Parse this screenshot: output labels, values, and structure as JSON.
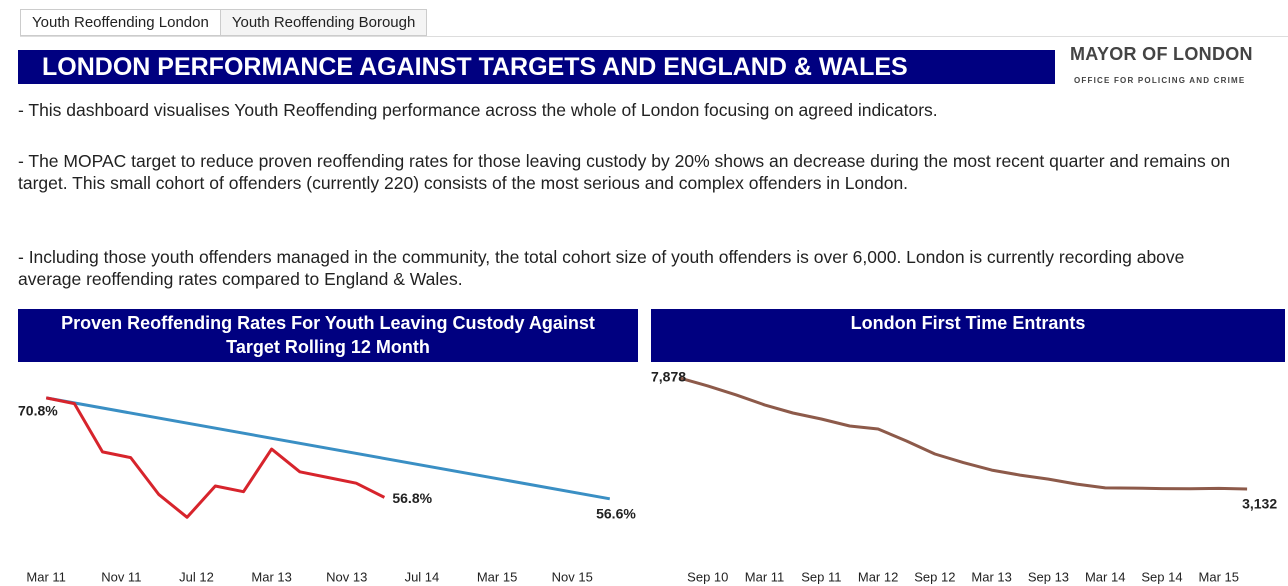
{
  "tabs": [
    "Youth Reoffending London",
    "Youth Reoffending Borough"
  ],
  "header": {
    "title": "LONDON PERFORMANCE AGAINST TARGETS AND ENGLAND & WALES"
  },
  "logo": {
    "name": "MAYOR OF LONDON",
    "subtitle": "OFFICE FOR POLICING AND CRIME"
  },
  "paragraphs": [
    "- This dashboard visualises Youth Reoffending performance across the whole of London focusing on agreed indicators.",
    "- The MOPAC target to reduce proven reoffending rates for those leaving custody by 20% shows an decrease during the most recent quarter and remains on target. This small cohort of offenders (currently 220) consists of the most serious and complex offenders in London.",
    "- Including those youth offenders managed in the community, the total cohort size of youth offenders is over 6,000. London is currently recording above average reoffending rates compared to England & Wales."
  ],
  "chart_data": [
    {
      "type": "line",
      "title": "Proven Reoffending Rates For Youth Leaving Custody Against Target Rolling 12 Month",
      "xlim": [
        "2010-12",
        "2016-06"
      ],
      "xticks": [
        {
          "value": "2011-03",
          "label": "Mar 11"
        },
        {
          "value": "2011-11",
          "label": "Nov 11"
        },
        {
          "value": "2012-07",
          "label": "Jul 12"
        },
        {
          "value": "2013-03",
          "label": "Mar 13"
        },
        {
          "value": "2013-11",
          "label": "Nov 13"
        },
        {
          "value": "2014-07",
          "label": "Jul 14"
        },
        {
          "value": "2015-03",
          "label": "Mar 15"
        },
        {
          "value": "2015-11",
          "label": "Nov 15"
        }
      ],
      "ylim": [
        48,
        75
      ],
      "series": [
        {
          "color": "#3a8fc4",
          "x": [
            "2011-03",
            "2016-03"
          ],
          "values": [
            70.8,
            56.6
          ],
          "value_labels": [
            null,
            "56.6%"
          ]
        },
        {
          "color": "#d7242c",
          "x": [
            "2011-03",
            "2011-06",
            "2011-09",
            "2011-12",
            "2012-03",
            "2012-06",
            "2012-09",
            "2012-12",
            "2013-03",
            "2013-06",
            "2013-09",
            "2013-12",
            "2014-03"
          ],
          "values": [
            70.8,
            70.0,
            63.2,
            62.4,
            57.2,
            54.0,
            58.4,
            57.6,
            63.6,
            60.4,
            59.6,
            58.8,
            56.8
          ],
          "value_labels": [
            "70.8%",
            null,
            null,
            null,
            null,
            null,
            null,
            null,
            null,
            null,
            null,
            null,
            "56.8%"
          ]
        }
      ]
    },
    {
      "type": "line",
      "title": "London First Time Entrants",
      "xlim": [
        "2010-03",
        "2015-10"
      ],
      "xticks": [
        {
          "value": "2010-09",
          "label": "Sep 10"
        },
        {
          "value": "2011-03",
          "label": "Mar 11"
        },
        {
          "value": "2011-09",
          "label": "Sep 11"
        },
        {
          "value": "2012-03",
          "label": "Mar 12"
        },
        {
          "value": "2012-09",
          "label": "Sep 12"
        },
        {
          "value": "2013-03",
          "label": "Mar 13"
        },
        {
          "value": "2013-09",
          "label": "Sep 13"
        },
        {
          "value": "2014-03",
          "label": "Mar 14"
        },
        {
          "value": "2014-09",
          "label": "Sep 14"
        },
        {
          "value": "2015-03",
          "label": "Mar 15"
        }
      ],
      "ylim": [
        100,
        8300
      ],
      "series": [
        {
          "color": "#8d5a4a",
          "x": [
            "2010-06",
            "2010-09",
            "2010-12",
            "2011-03",
            "2011-06",
            "2011-09",
            "2011-12",
            "2012-03",
            "2012-06",
            "2012-09",
            "2012-12",
            "2013-03",
            "2013-06",
            "2013-09",
            "2013-12",
            "2014-03",
            "2014-06",
            "2014-09",
            "2014-12",
            "2015-03",
            "2015-06"
          ],
          "values": [
            7878,
            7536,
            7150,
            6722,
            6380,
            6123,
            5824,
            5695,
            5182,
            4625,
            4260,
            3940,
            3726,
            3555,
            3341,
            3180,
            3170,
            3150,
            3140,
            3160,
            3132
          ],
          "value_labels": [
            "7,878",
            null,
            null,
            null,
            null,
            null,
            null,
            null,
            null,
            null,
            null,
            null,
            null,
            null,
            null,
            null,
            null,
            null,
            null,
            null,
            "3,132"
          ]
        }
      ]
    }
  ]
}
